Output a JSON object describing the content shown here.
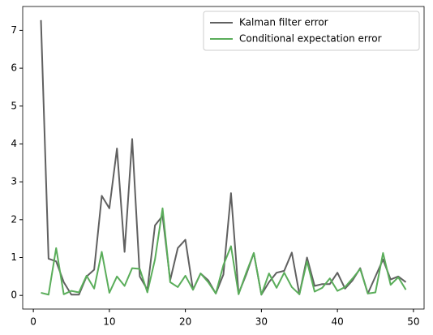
{
  "chart_data": {
    "type": "line",
    "x": [
      1,
      2,
      3,
      4,
      5,
      6,
      7,
      8,
      9,
      10,
      11,
      12,
      13,
      14,
      15,
      16,
      17,
      18,
      19,
      20,
      21,
      22,
      23,
      24,
      25,
      26,
      27,
      28,
      29,
      30,
      31,
      32,
      33,
      34,
      35,
      36,
      37,
      38,
      39,
      40,
      41,
      42,
      43,
      44,
      45,
      46,
      47,
      48,
      49
    ],
    "series": [
      {
        "name": "Kalman filter error",
        "color": "#606060",
        "values": [
          7.27,
          0.97,
          0.9,
          0.35,
          0.02,
          0.02,
          0.5,
          0.68,
          2.63,
          2.3,
          3.88,
          1.15,
          4.13,
          0.5,
          0.15,
          1.85,
          2.1,
          0.4,
          1.25,
          1.47,
          0.15,
          0.58,
          0.4,
          0.05,
          0.55,
          2.7,
          0.05,
          0.55,
          1.12,
          0.02,
          0.35,
          0.6,
          0.65,
          1.13,
          0.03,
          1.0,
          0.25,
          0.3,
          0.3,
          0.6,
          0.18,
          0.4,
          0.72,
          0.05,
          0.5,
          0.95,
          0.42,
          0.5,
          0.35
        ]
      },
      {
        "name": "Conditional expectation error",
        "color": "#5aad5a",
        "values": [
          0.07,
          0.02,
          1.25,
          0.03,
          0.12,
          0.08,
          0.52,
          0.18,
          1.15,
          0.07,
          0.5,
          0.25,
          0.72,
          0.7,
          0.08,
          0.95,
          2.3,
          0.35,
          0.22,
          0.52,
          0.15,
          0.58,
          0.35,
          0.05,
          0.8,
          1.3,
          0.03,
          0.6,
          1.12,
          0.02,
          0.58,
          0.2,
          0.6,
          0.22,
          0.03,
          0.9,
          0.1,
          0.2,
          0.45,
          0.12,
          0.22,
          0.45,
          0.7,
          0.05,
          0.08,
          1.12,
          0.28,
          0.48,
          0.15
        ]
      }
    ],
    "xlim": [
      -1.4,
      51.4
    ],
    "xticks": [
      0,
      10,
      20,
      30,
      40,
      50
    ],
    "ylim": [
      -0.36,
      7.63
    ],
    "yticks": [
      0,
      1,
      2,
      3,
      4,
      5,
      6,
      7
    ],
    "legend": "upper right"
  }
}
